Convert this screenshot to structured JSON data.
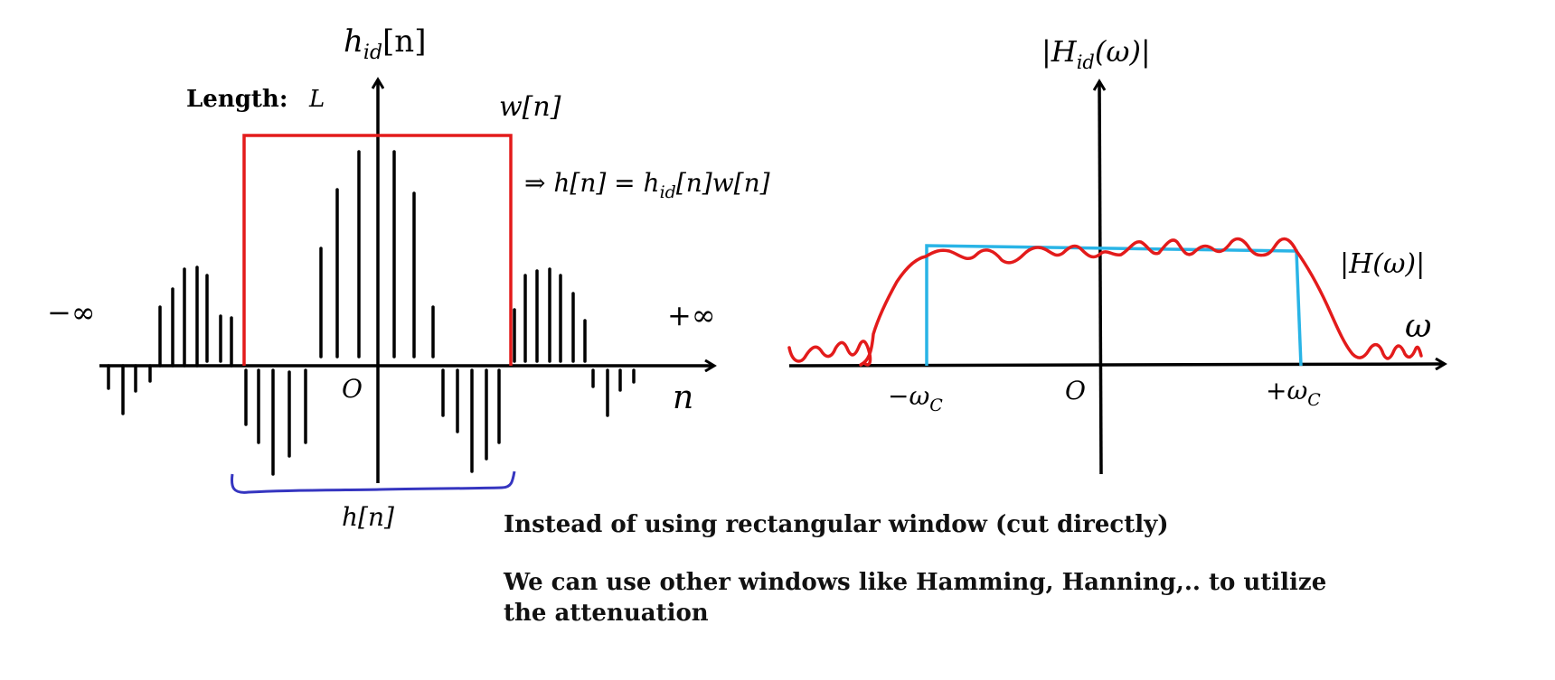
{
  "left": {
    "axis_label": "h_id[n]",
    "axis_label_main": "h",
    "axis_label_sub": "id",
    "axis_label_arg": "[n]",
    "length_label": "Length:",
    "length_var": "L",
    "window_label": "w[n]",
    "equation": "⇒ h[n] = h_id[n]w[n]",
    "eq_pre": "⇒ h[n] = h",
    "eq_sub": "id",
    "eq_post": "[n]w[n]",
    "neg_inf": "−∞",
    "pos_inf": "+∞",
    "origin": "O",
    "x_label": "n",
    "brace_label": "h[n]"
  },
  "right": {
    "axis_label": "|H_id(ω)|",
    "axis_label_pre": "|H",
    "axis_label_sub": "id",
    "axis_label_post": "(ω)|",
    "response_label": "|H(ω)|",
    "x_label": "ω",
    "neg_cutoff": "−ω",
    "neg_cutoff_sub": "C",
    "pos_cutoff": "+ω",
    "pos_cutoff_sub": "C",
    "origin": "O"
  },
  "notes": {
    "line1": "Instead of using rectangular window (cut directly)",
    "line2a": "We can use other windows like Hamming, Hanning,.. to utilize",
    "line2b": "the attenuation"
  },
  "colors": {
    "axis": "#000000",
    "window": "#e31b1b",
    "brace": "#3535c0",
    "ideal": "#29b4e6",
    "response": "#e31b1b"
  }
}
